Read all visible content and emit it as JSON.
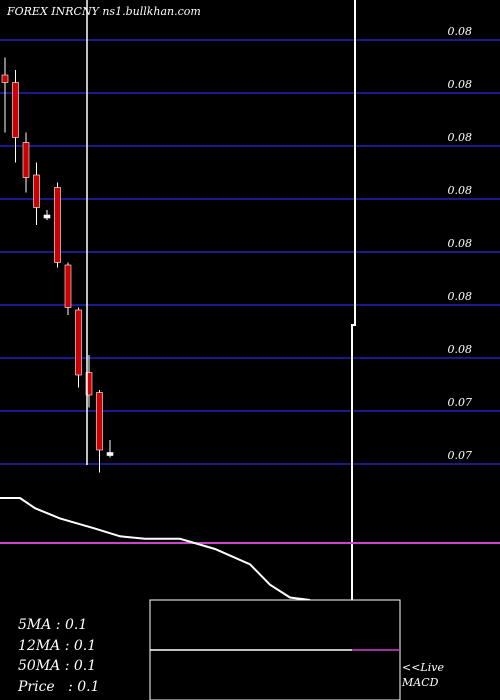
{
  "header": {
    "title": "FOREX  INRCNY ns1.bullkhan.com"
  },
  "chart_data": {
    "type": "candlestick",
    "price_axis_labels": [
      "0.08",
      "0.08",
      "0.08",
      "0.08",
      "0.08",
      "0.08",
      "0.08",
      "0.07",
      "0.07"
    ],
    "candles": [
      {
        "o": 0.0836,
        "h": 0.0843,
        "l": 0.0813,
        "c": 0.0833
      },
      {
        "o": 0.0833,
        "h": 0.0838,
        "l": 0.0801,
        "c": 0.0811
      },
      {
        "o": 0.0809,
        "h": 0.0813,
        "l": 0.0789,
        "c": 0.0795
      },
      {
        "o": 0.0796,
        "h": 0.0801,
        "l": 0.0776,
        "c": 0.0783
      },
      {
        "o": 0.078,
        "h": 0.0782,
        "l": 0.0778,
        "c": 0.078
      },
      {
        "o": 0.0791,
        "h": 0.0793,
        "l": 0.0759,
        "c": 0.0761
      },
      {
        "o": 0.076,
        "h": 0.0761,
        "l": 0.074,
        "c": 0.0743
      },
      {
        "o": 0.0742,
        "h": 0.0743,
        "l": 0.0711,
        "c": 0.0716
      },
      {
        "o": 0.0717,
        "h": 0.0724,
        "l": 0.0703,
        "c": 0.0708
      },
      {
        "o": 0.0709,
        "h": 0.071,
        "l": 0.0677,
        "c": 0.0686
      },
      {
        "o": 0.0685,
        "h": 0.069,
        "l": 0.0683,
        "c": 0.0685
      }
    ],
    "ma_line": [
      0.0663,
      0.0663,
      0.0659,
      0.0655,
      0.0651,
      0.0648,
      0.0647,
      0.0647,
      0.0643,
      0.0637,
      0.0629,
      0.0624,
      0.0623
    ]
  },
  "indicator_box": {
    "lines": [
      "5MA : 0.1",
      "12MA : 0.1",
      "50MA : 0.1",
      "Price   : 0.1"
    ]
  },
  "live_label": {
    "line1": "<<Live",
    "line2": "MACD"
  },
  "colors": {
    "background": "#000000",
    "grid": "#1a1a8c",
    "bearish": "#cc0000",
    "bullish": "#ffffff",
    "signal_line": "#cc44cc",
    "line": "#ffffff"
  }
}
